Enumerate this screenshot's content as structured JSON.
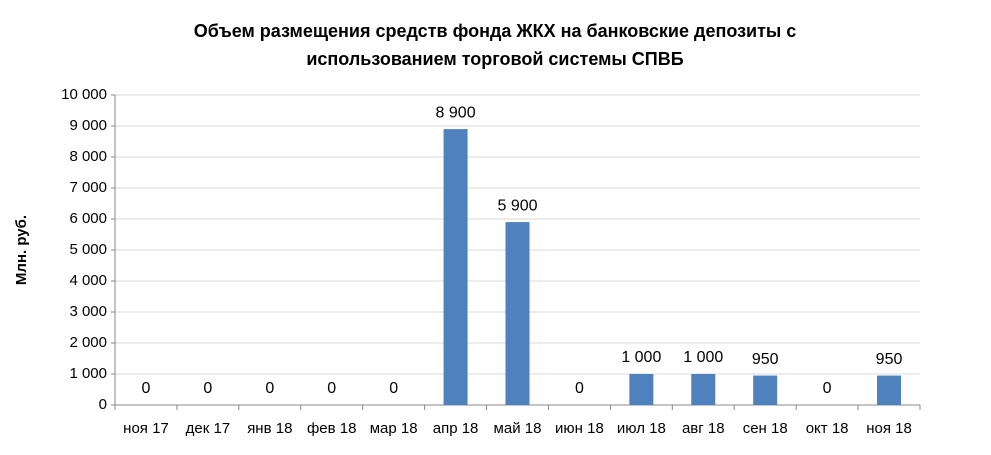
{
  "chart_data": {
    "type": "bar",
    "title": [
      "Объем размещения средств фонда ЖКХ на банковские депозиты с",
      "использованием торговой системы СПВБ"
    ],
    "y_label": "Млн. руб.",
    "categories": [
      "ноя 17",
      "дек 17",
      "янв 18",
      "фев 18",
      "мар 18",
      "апр 18",
      "май 18",
      "июн 18",
      "июл 18",
      "авг 18",
      "сен 18",
      "окт 18",
      "ноя 18"
    ],
    "values": [
      0,
      0,
      0,
      0,
      0,
      8900,
      5900,
      0,
      1000,
      1000,
      950,
      0,
      950
    ],
    "value_labels": [
      "0",
      "0",
      "0",
      "0",
      "0",
      "8 900",
      "5 900",
      "0",
      "1 000",
      "1 000",
      "950",
      "0",
      "950"
    ],
    "color": "#4f81bd",
    "ylim": [
      0,
      10000
    ],
    "yticks": [
      0,
      {
        "value": 1000,
        "label": "1 000"
      },
      {
        "value": 2000,
        "label": "2 000"
      },
      {
        "value": 3000,
        "label": "3 000"
      },
      {
        "value": 4000,
        "label": "4 000"
      },
      {
        "value": 5000,
        "label": "5 000"
      },
      {
        "value": 6000,
        "label": "6 000"
      },
      {
        "value": 7000,
        "label": "7 000"
      },
      {
        "value": 8000,
        "label": "8 000"
      },
      {
        "value": 9000,
        "label": "9 000"
      },
      {
        "value": 10000,
        "label": "10 000"
      }
    ],
    "grid": true
  }
}
